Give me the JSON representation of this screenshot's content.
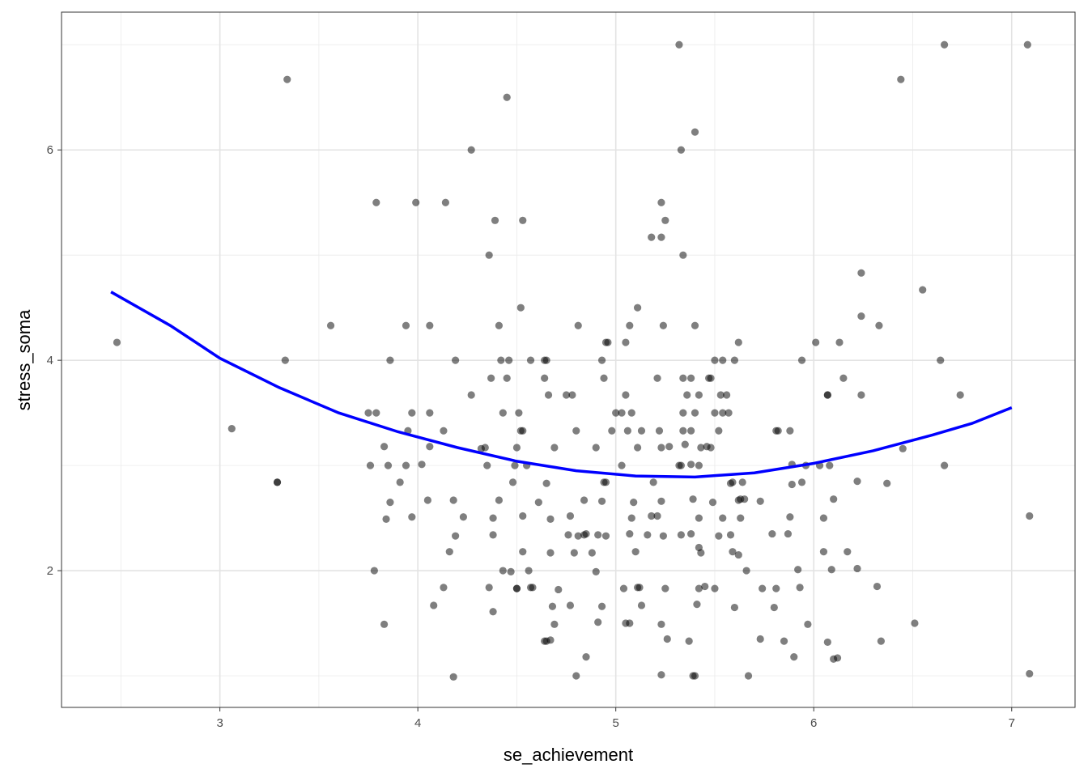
{
  "chart_data": {
    "type": "scatter",
    "title": "",
    "xlabel": "se_achievement",
    "ylabel": "stress_soma",
    "xlim": [
      2.2,
      7.32
    ],
    "ylim": [
      0.7,
      7.31
    ],
    "x_ticks": [
      3,
      4,
      5,
      6,
      7
    ],
    "y_ticks": [
      2,
      4,
      6
    ],
    "x_tick_labels": [
      "3",
      "4",
      "5",
      "6",
      "7"
    ],
    "y_tick_labels": [
      "2",
      "4",
      "6"
    ],
    "grid": true,
    "theme": "bw",
    "point_color": "#000000",
    "point_alpha": 0.5,
    "smooth_color": "#0000FF",
    "points": [
      [
        5.32,
        7
      ],
      [
        6.66,
        7
      ],
      [
        7.08,
        7
      ],
      [
        3.34,
        6.67
      ],
      [
        6.44,
        6.67
      ],
      [
        4.45,
        6.5
      ],
      [
        5.4,
        6.17
      ],
      [
        4.27,
        6
      ],
      [
        5.33,
        6
      ],
      [
        3.79,
        5.5
      ],
      [
        3.99,
        5.5
      ],
      [
        4.14,
        5.5
      ],
      [
        5.23,
        5.5
      ],
      [
        4.39,
        5.33
      ],
      [
        4.53,
        5.33
      ],
      [
        5.25,
        5.33
      ],
      [
        5.18,
        5.17
      ],
      [
        5.23,
        5.17
      ],
      [
        4.36,
        5
      ],
      [
        5.34,
        5
      ],
      [
        6.24,
        4.83
      ],
      [
        6.55,
        4.67
      ],
      [
        4.52,
        4.5
      ],
      [
        5.11,
        4.5
      ],
      [
        6.24,
        4.42
      ],
      [
        3.56,
        4.33
      ],
      [
        3.94,
        4.33
      ],
      [
        4.06,
        4.33
      ],
      [
        4.41,
        4.33
      ],
      [
        4.81,
        4.33
      ],
      [
        5.07,
        4.33
      ],
      [
        5.24,
        4.33
      ],
      [
        5.4,
        4.33
      ],
      [
        6.33,
        4.33
      ],
      [
        2.48,
        4.17
      ],
      [
        4.95,
        4.17
      ],
      [
        4.96,
        4.17
      ],
      [
        5.05,
        4.17
      ],
      [
        5.62,
        4.17
      ],
      [
        6.01,
        4.17
      ],
      [
        6.13,
        4.17
      ],
      [
        3.33,
        4
      ],
      [
        3.86,
        4
      ],
      [
        4.19,
        4
      ],
      [
        4.42,
        4
      ],
      [
        4.46,
        4
      ],
      [
        4.57,
        4
      ],
      [
        4.64,
        4
      ],
      [
        4.65,
        4
      ],
      [
        4.93,
        4
      ],
      [
        5.5,
        4
      ],
      [
        5.54,
        4
      ],
      [
        5.6,
        4
      ],
      [
        5.94,
        4
      ],
      [
        6.64,
        4
      ],
      [
        4.37,
        3.83
      ],
      [
        4.45,
        3.83
      ],
      [
        4.64,
        3.83
      ],
      [
        4.94,
        3.83
      ],
      [
        5.21,
        3.83
      ],
      [
        5.34,
        3.83
      ],
      [
        5.38,
        3.83
      ],
      [
        5.47,
        3.83
      ],
      [
        5.48,
        3.83
      ],
      [
        6.15,
        3.83
      ],
      [
        4.27,
        3.67
      ],
      [
        4.66,
        3.67
      ],
      [
        4.75,
        3.67
      ],
      [
        4.78,
        3.67
      ],
      [
        5.05,
        3.67
      ],
      [
        5.36,
        3.67
      ],
      [
        5.42,
        3.67
      ],
      [
        5.53,
        3.67
      ],
      [
        5.56,
        3.67
      ],
      [
        6.07,
        3.67
      ],
      [
        6.07,
        3.67
      ],
      [
        6.24,
        3.67
      ],
      [
        6.74,
        3.67
      ],
      [
        3.75,
        3.5
      ],
      [
        3.79,
        3.5
      ],
      [
        3.97,
        3.5
      ],
      [
        4.06,
        3.5
      ],
      [
        4.43,
        3.5
      ],
      [
        4.51,
        3.5
      ],
      [
        5.0,
        3.5
      ],
      [
        5.03,
        3.5
      ],
      [
        5.08,
        3.5
      ],
      [
        5.34,
        3.5
      ],
      [
        5.4,
        3.5
      ],
      [
        5.5,
        3.5
      ],
      [
        5.54,
        3.5
      ],
      [
        5.57,
        3.5
      ],
      [
        3.06,
        3.35
      ],
      [
        3.95,
        3.33
      ],
      [
        4.13,
        3.33
      ],
      [
        4.52,
        3.33
      ],
      [
        4.53,
        3.33
      ],
      [
        4.8,
        3.33
      ],
      [
        4.98,
        3.33
      ],
      [
        5.06,
        3.33
      ],
      [
        5.13,
        3.33
      ],
      [
        5.22,
        3.33
      ],
      [
        5.34,
        3.33
      ],
      [
        5.38,
        3.33
      ],
      [
        5.52,
        3.33
      ],
      [
        5.81,
        3.33
      ],
      [
        5.82,
        3.33
      ],
      [
        5.88,
        3.33
      ],
      [
        3.83,
        3.18
      ],
      [
        4.06,
        3.18
      ],
      [
        4.32,
        3.16
      ],
      [
        4.34,
        3.17
      ],
      [
        4.5,
        3.17
      ],
      [
        4.69,
        3.17
      ],
      [
        4.9,
        3.17
      ],
      [
        5.11,
        3.17
      ],
      [
        5.23,
        3.17
      ],
      [
        5.27,
        3.18
      ],
      [
        5.35,
        3.2
      ],
      [
        5.43,
        3.17
      ],
      [
        5.46,
        3.18
      ],
      [
        5.48,
        3.17
      ],
      [
        6.45,
        3.16
      ],
      [
        3.76,
        3
      ],
      [
        3.85,
        3
      ],
      [
        3.94,
        3
      ],
      [
        4.02,
        3.01
      ],
      [
        4.35,
        3
      ],
      [
        4.49,
        3
      ],
      [
        4.55,
        3
      ],
      [
        5.03,
        3
      ],
      [
        5.32,
        3
      ],
      [
        5.33,
        3
      ],
      [
        5.38,
        3.01
      ],
      [
        5.42,
        3
      ],
      [
        5.89,
        3.01
      ],
      [
        5.96,
        3
      ],
      [
        6.03,
        3
      ],
      [
        6.08,
        3
      ],
      [
        6.66,
        3
      ],
      [
        3.29,
        2.84
      ],
      [
        3.29,
        2.84
      ],
      [
        3.91,
        2.84
      ],
      [
        4.48,
        2.84
      ],
      [
        4.65,
        2.83
      ],
      [
        4.94,
        2.84
      ],
      [
        4.95,
        2.84
      ],
      [
        5.19,
        2.84
      ],
      [
        5.58,
        2.83
      ],
      [
        5.59,
        2.84
      ],
      [
        5.64,
        2.84
      ],
      [
        5.89,
        2.82
      ],
      [
        5.94,
        2.84
      ],
      [
        6.22,
        2.85
      ],
      [
        6.37,
        2.83
      ],
      [
        3.86,
        2.65
      ],
      [
        4.05,
        2.67
      ],
      [
        4.18,
        2.67
      ],
      [
        4.41,
        2.67
      ],
      [
        4.61,
        2.65
      ],
      [
        4.84,
        2.67
      ],
      [
        4.93,
        2.66
      ],
      [
        5.09,
        2.65
      ],
      [
        5.23,
        2.66
      ],
      [
        5.39,
        2.68
      ],
      [
        5.49,
        2.65
      ],
      [
        5.62,
        2.67
      ],
      [
        5.63,
        2.68
      ],
      [
        5.65,
        2.68
      ],
      [
        5.73,
        2.66
      ],
      [
        6.1,
        2.68
      ],
      [
        3.84,
        2.49
      ],
      [
        3.97,
        2.51
      ],
      [
        4.23,
        2.51
      ],
      [
        4.38,
        2.5
      ],
      [
        4.53,
        2.52
      ],
      [
        4.67,
        2.49
      ],
      [
        4.77,
        2.52
      ],
      [
        5.08,
        2.5
      ],
      [
        5.18,
        2.52
      ],
      [
        5.21,
        2.52
      ],
      [
        5.42,
        2.5
      ],
      [
        5.54,
        2.5
      ],
      [
        5.63,
        2.5
      ],
      [
        5.88,
        2.51
      ],
      [
        6.05,
        2.5
      ],
      [
        7.09,
        2.52
      ],
      [
        4.19,
        2.33
      ],
      [
        4.38,
        2.34
      ],
      [
        4.76,
        2.34
      ],
      [
        4.81,
        2.33
      ],
      [
        4.84,
        2.34
      ],
      [
        4.85,
        2.35
      ],
      [
        4.91,
        2.34
      ],
      [
        4.95,
        2.33
      ],
      [
        5.07,
        2.35
      ],
      [
        5.16,
        2.34
      ],
      [
        5.24,
        2.33
      ],
      [
        5.33,
        2.34
      ],
      [
        5.38,
        2.35
      ],
      [
        5.52,
        2.33
      ],
      [
        5.58,
        2.34
      ],
      [
        5.79,
        2.35
      ],
      [
        5.87,
        2.35
      ],
      [
        4.16,
        2.18
      ],
      [
        4.53,
        2.18
      ],
      [
        4.67,
        2.17
      ],
      [
        4.79,
        2.17
      ],
      [
        4.88,
        2.17
      ],
      [
        5.1,
        2.18
      ],
      [
        5.42,
        2.22
      ],
      [
        5.43,
        2.17
      ],
      [
        5.59,
        2.18
      ],
      [
        5.62,
        2.15
      ],
      [
        6.05,
        2.18
      ],
      [
        6.17,
        2.18
      ],
      [
        3.78,
        2
      ],
      [
        4.43,
        2
      ],
      [
        4.47,
        1.99
      ],
      [
        4.56,
        2
      ],
      [
        4.9,
        1.99
      ],
      [
        5.66,
        2
      ],
      [
        5.92,
        2.01
      ],
      [
        6.09,
        2.01
      ],
      [
        6.22,
        2.02
      ],
      [
        4.13,
        1.84
      ],
      [
        4.36,
        1.84
      ],
      [
        4.5,
        1.83
      ],
      [
        4.5,
        1.83
      ],
      [
        4.57,
        1.84
      ],
      [
        4.58,
        1.84
      ],
      [
        4.71,
        1.82
      ],
      [
        5.04,
        1.83
      ],
      [
        5.11,
        1.84
      ],
      [
        5.12,
        1.84
      ],
      [
        5.25,
        1.83
      ],
      [
        5.42,
        1.83
      ],
      [
        5.45,
        1.85
      ],
      [
        5.5,
        1.83
      ],
      [
        5.74,
        1.83
      ],
      [
        5.81,
        1.83
      ],
      [
        5.93,
        1.84
      ],
      [
        6.32,
        1.85
      ],
      [
        4.08,
        1.67
      ],
      [
        4.38,
        1.61
      ],
      [
        4.68,
        1.66
      ],
      [
        4.77,
        1.67
      ],
      [
        4.93,
        1.66
      ],
      [
        5.13,
        1.67
      ],
      [
        5.41,
        1.68
      ],
      [
        5.6,
        1.65
      ],
      [
        5.8,
        1.65
      ],
      [
        3.83,
        1.49
      ],
      [
        4.69,
        1.49
      ],
      [
        4.91,
        1.51
      ],
      [
        5.05,
        1.5
      ],
      [
        5.07,
        1.5
      ],
      [
        5.23,
        1.49
      ],
      [
        5.97,
        1.49
      ],
      [
        6.51,
        1.5
      ],
      [
        4.64,
        1.33
      ],
      [
        4.65,
        1.33
      ],
      [
        4.67,
        1.34
      ],
      [
        5.26,
        1.35
      ],
      [
        5.37,
        1.33
      ],
      [
        5.73,
        1.35
      ],
      [
        5.85,
        1.33
      ],
      [
        6.07,
        1.32
      ],
      [
        6.34,
        1.33
      ],
      [
        4.85,
        1.18
      ],
      [
        5.9,
        1.18
      ],
      [
        6.1,
        1.16
      ],
      [
        6.12,
        1.17
      ],
      [
        4.18,
        0.99
      ],
      [
        4.8,
        1
      ],
      [
        5.23,
        1.01
      ],
      [
        5.39,
        1
      ],
      [
        5.4,
        1
      ],
      [
        5.67,
        1
      ],
      [
        7.09,
        1.02
      ]
    ],
    "smooth": [
      [
        2.45,
        4.65
      ],
      [
        2.75,
        4.33
      ],
      [
        3.0,
        4.02
      ],
      [
        3.3,
        3.74
      ],
      [
        3.6,
        3.5
      ],
      [
        3.9,
        3.32
      ],
      [
        4.2,
        3.17
      ],
      [
        4.5,
        3.04
      ],
      [
        4.8,
        2.95
      ],
      [
        5.1,
        2.9
      ],
      [
        5.4,
        2.89
      ],
      [
        5.7,
        2.93
      ],
      [
        6.0,
        3.02
      ],
      [
        6.3,
        3.14
      ],
      [
        6.6,
        3.29
      ],
      [
        6.8,
        3.4
      ],
      [
        7.0,
        3.55
      ]
    ]
  }
}
